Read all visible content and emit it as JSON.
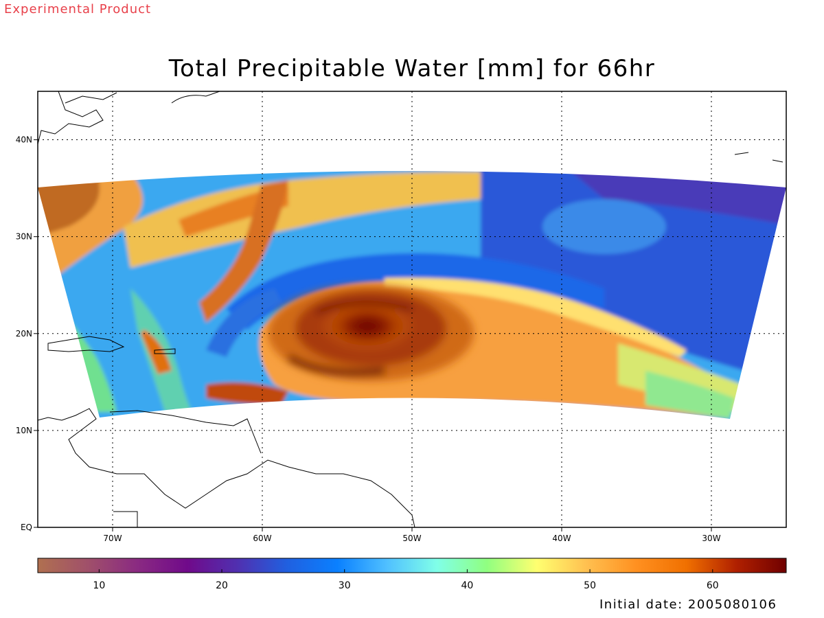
{
  "header": {
    "experimental": "Experimental Product",
    "title": "Total Precipitable Water [mm] for 66hr"
  },
  "footer": {
    "initial_date": "Initial date: 2005080106"
  },
  "map": {
    "lon_range": [
      -75,
      -25
    ],
    "lat_range": [
      0,
      45
    ],
    "lon_ticks": [
      {
        "value": -70,
        "label": "70W"
      },
      {
        "value": -60,
        "label": "60W"
      },
      {
        "value": -50,
        "label": "50W"
      },
      {
        "value": -40,
        "label": "40W"
      },
      {
        "value": -30,
        "label": "30W"
      }
    ],
    "lat_ticks": [
      {
        "value": 0,
        "label": "EQ"
      },
      {
        "value": 10,
        "label": "10N"
      },
      {
        "value": 20,
        "label": "20N"
      },
      {
        "value": 30,
        "label": "30N"
      },
      {
        "value": 40,
        "label": "40N"
      }
    ],
    "grid": true,
    "cyclone_center": {
      "lon": -51.5,
      "lat": 20.5
    }
  },
  "colorbar": {
    "range": [
      5,
      66
    ],
    "ticks": [
      10,
      20,
      30,
      40,
      50,
      60
    ],
    "tick_labels": [
      "10",
      "20",
      "30",
      "40",
      "50",
      "60"
    ],
    "colors": [
      "#b07050",
      "#a0506a",
      "#8a2a82",
      "#700a8a",
      "#5030b0",
      "#2060e0",
      "#0a80ff",
      "#50c0ff",
      "#80ffe8",
      "#90ff80",
      "#ffff70",
      "#ffc050",
      "#ff9020",
      "#f07000",
      "#b02000",
      "#700000"
    ]
  }
}
